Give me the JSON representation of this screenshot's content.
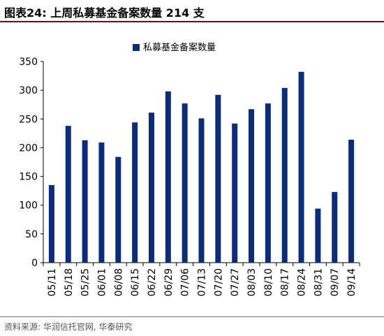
{
  "header": {
    "title": "图表24:  上周私募基金备案数量 214 支"
  },
  "footer": {
    "source": "资料来源: 华润信托官网, 华泰研究"
  },
  "chart_data": {
    "type": "bar",
    "title": "",
    "xlabel": "",
    "ylabel": "",
    "ylim": [
      0,
      350
    ],
    "yticks": [
      0,
      50,
      100,
      150,
      200,
      250,
      300,
      350
    ],
    "legend_position": "top-center",
    "grid": false,
    "bar_color": "#0b2c7a",
    "categories": [
      "05/11",
      "05/18",
      "05/25",
      "06/01",
      "06/08",
      "06/15",
      "06/22",
      "06/29",
      "07/06",
      "07/13",
      "07/20",
      "07/27",
      "08/03",
      "08/10",
      "08/17",
      "08/24",
      "08/31",
      "09/07",
      "09/14"
    ],
    "series": [
      {
        "name": "私募基金备案数量",
        "values": [
          135,
          238,
          213,
          209,
          184,
          244,
          261,
          298,
          277,
          251,
          292,
          242,
          267,
          277,
          304,
          332,
          94,
          123,
          214
        ]
      }
    ]
  }
}
